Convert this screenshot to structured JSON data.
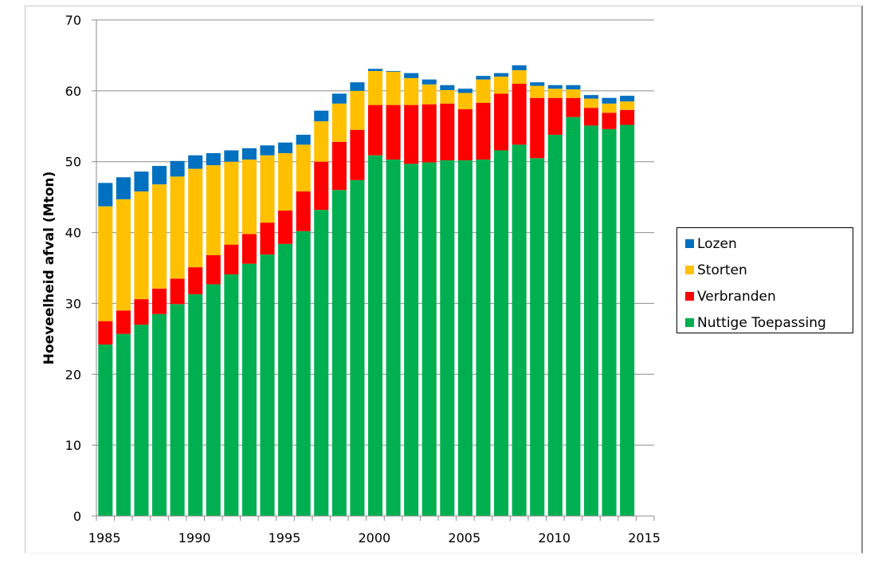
{
  "chart_data": {
    "type": "bar",
    "stacked": true,
    "title": "",
    "xlabel": "",
    "ylabel": "Hoeveelheid afval (Mton)",
    "ylim": [
      0,
      70
    ],
    "yticks": [
      "0",
      "10",
      "20",
      "30",
      "40",
      "50",
      "60",
      "70"
    ],
    "xticks": [
      "1985",
      "1990",
      "1995",
      "2000",
      "2005",
      "2010",
      "2015"
    ],
    "grid": true,
    "legend_position": "right",
    "categories": [
      "1985",
      "1986",
      "1987",
      "1988",
      "1989",
      "1990",
      "1991",
      "1992",
      "1993",
      "1994",
      "1995",
      "1996",
      "1997",
      "1998",
      "1999",
      "2000",
      "2001",
      "2002",
      "2003",
      "2004",
      "2005",
      "2006",
      "2007",
      "2008",
      "2009",
      "2010",
      "2011",
      "2012",
      "2013",
      "2014"
    ],
    "series": [
      {
        "name": "Nuttige Toepassing",
        "color": "#00b050",
        "values": [
          24.2,
          25.7,
          27.0,
          28.5,
          29.9,
          31.3,
          32.7,
          34.1,
          35.6,
          36.9,
          38.4,
          40.2,
          43.2,
          46.0,
          47.4,
          50.9,
          50.3,
          49.7,
          49.9,
          50.2,
          50.2,
          50.3,
          51.6,
          52.4,
          50.5,
          53.8,
          56.3,
          55.1,
          54.6,
          55.2
        ]
      },
      {
        "name": "Verbranden",
        "color": "#ff0000",
        "values": [
          3.3,
          3.3,
          3.6,
          3.6,
          3.6,
          3.8,
          4.1,
          4.2,
          4.2,
          4.5,
          4.7,
          5.6,
          6.8,
          6.8,
          7.1,
          7.1,
          7.7,
          8.3,
          8.2,
          8.0,
          7.2,
          8.0,
          8.0,
          8.6,
          8.5,
          5.2,
          2.7,
          2.5,
          2.3,
          2.1
        ]
      },
      {
        "name": "Storten",
        "color": "#ffc000",
        "values": [
          16.2,
          15.7,
          15.2,
          14.7,
          14.4,
          13.9,
          12.7,
          11.7,
          10.5,
          9.5,
          8.1,
          6.6,
          5.7,
          5.4,
          5.5,
          4.8,
          4.7,
          3.8,
          2.8,
          1.9,
          2.3,
          3.3,
          2.4,
          1.9,
          1.7,
          1.3,
          1.2,
          1.3,
          1.3,
          1.2
        ]
      },
      {
        "name": "Lozen",
        "color": "#0070c0",
        "values": [
          3.3,
          3.1,
          2.8,
          2.6,
          2.2,
          1.9,
          1.7,
          1.6,
          1.6,
          1.4,
          1.5,
          1.4,
          1.5,
          1.4,
          1.2,
          0.3,
          0.1,
          0.7,
          0.7,
          0.7,
          0.6,
          0.5,
          0.5,
          0.7,
          0.5,
          0.5,
          0.6,
          0.5,
          0.8,
          0.8
        ]
      }
    ],
    "legend": [
      "Lozen",
      "Storten",
      "Verbranden",
      "Nuttige Toepassing"
    ]
  },
  "colors": {
    "gridline": "#8c8c8c",
    "axis": "#8c8c8c"
  }
}
